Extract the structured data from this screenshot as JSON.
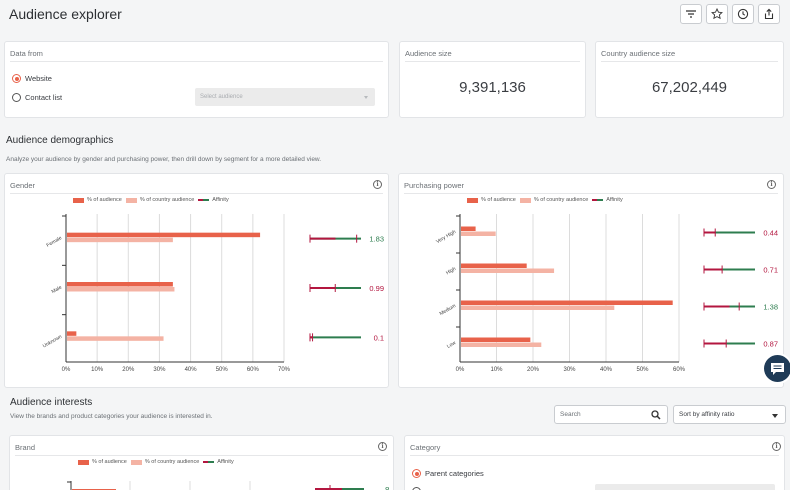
{
  "header": {
    "title": "Audience explorer"
  },
  "data_from": {
    "title": "Data from",
    "options": [
      "Website",
      "Contact list"
    ],
    "selected": "Website",
    "select_placeholder": "Select audience"
  },
  "audience_size": {
    "title": "Audience size",
    "value": "9,391,136"
  },
  "country_size": {
    "title": "Country audience size",
    "value": "67,202,449"
  },
  "demographics": {
    "title": "Audience demographics",
    "subtitle": "Analyze your audience by gender and purchasing power, then drill down by segment for a more detailed view."
  },
  "legend": {
    "audience": "% of audience",
    "country": "% of country audience",
    "affinity": "Affinity"
  },
  "colors": {
    "audience": "#e8624a",
    "country": "#f4b3a4",
    "affinity_low": "#b3163f",
    "affinity_high": "#2e7d4f",
    "accent": "#e8624a"
  },
  "gender_card": {
    "title": "Gender"
  },
  "purchasing_card": {
    "title": "Purchasing power"
  },
  "interests": {
    "title": "Audience interests",
    "subtitle": "View the brands and product categories your audience is interested in.",
    "search_placeholder": "Search",
    "sort_value": "Sort by affinity ratio"
  },
  "brand_card": {
    "title": "Brand",
    "affinity_partial": "8"
  },
  "category_card": {
    "title": "Category",
    "options": [
      "Parent categories"
    ],
    "selected": "Parent categories"
  },
  "chart_data": [
    {
      "type": "bar",
      "title": "Gender",
      "orientation": "horizontal",
      "categories": [
        "Female",
        "Male",
        "Unknown"
      ],
      "series": [
        {
          "name": "% of audience",
          "values": [
            62,
            34,
            3
          ]
        },
        {
          "name": "% of country audience",
          "values": [
            34,
            34.5,
            31
          ]
        }
      ],
      "affinity": [
        1.83,
        0.99,
        0.1
      ],
      "affinity_labels": [
        "1.83",
        "0.99",
        "0.1"
      ],
      "xlim": [
        0,
        70
      ],
      "xticks": [
        "0%",
        "10%",
        "20%",
        "30%",
        "40%",
        "50%",
        "60%",
        "70%"
      ],
      "grid": true,
      "legend": "top"
    },
    {
      "type": "bar",
      "title": "Purchasing power",
      "orientation": "horizontal",
      "categories": [
        "Very High",
        "High",
        "Medium",
        "Low"
      ],
      "series": [
        {
          "name": "% of audience",
          "values": [
            4,
            18,
            58,
            19
          ]
        },
        {
          "name": "% of country audience",
          "values": [
            9.5,
            25.5,
            42,
            22
          ]
        }
      ],
      "affinity": [
        0.44,
        0.71,
        1.38,
        0.87
      ],
      "affinity_labels": [
        "0.44",
        "0.71",
        "1.38",
        "0.87"
      ],
      "xlim": [
        0,
        60
      ],
      "xticks": [
        "0%",
        "10%",
        "20%",
        "30%",
        "40%",
        "50%",
        "60%"
      ],
      "grid": true,
      "legend": "top"
    }
  ]
}
